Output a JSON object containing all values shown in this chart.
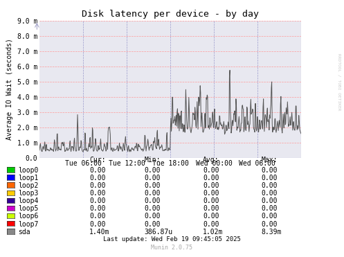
{
  "title": "Disk latency per device - by day",
  "ylabel": "Average IO Wait (seconds)",
  "right_label": "RRDTOOL / TOBI OETIKER",
  "background_color": "#ffffff",
  "plot_bg_color": "#e8e8f0",
  "grid_color_h": "#ff9999",
  "grid_color_v": "#9999cc",
  "ylim": [
    0.0,
    0.009
  ],
  "yticks": [
    0.0,
    0.001,
    0.002,
    0.003,
    0.004,
    0.005,
    0.006,
    0.007,
    0.008,
    0.009
  ],
  "ytick_labels": [
    "0.0",
    "1.0 m",
    "2.0 m",
    "3.0 m",
    "4.0 m",
    "5.0 m",
    "6.0 m",
    "7.0 m",
    "8.0 m",
    "9.0 m"
  ],
  "xtick_positions": [
    0.1667,
    0.3333,
    0.5,
    0.6667,
    0.8333
  ],
  "xtick_labels": [
    "Tue 06:00",
    "Tue 12:00",
    "Tue 18:00",
    "Wed 00:00",
    "Wed 06:00"
  ],
  "line_color": "#555555",
  "line_width": 0.7,
  "legend_entries": [
    {
      "label": "loop0",
      "color": "#00cc00"
    },
    {
      "label": "loop1",
      "color": "#0000ff"
    },
    {
      "label": "loop2",
      "color": "#ff6600"
    },
    {
      "label": "loop3",
      "color": "#ffcc00"
    },
    {
      "label": "loop4",
      "color": "#330099"
    },
    {
      "label": "loop5",
      "color": "#cc00cc"
    },
    {
      "label": "loop6",
      "color": "#ccff00"
    },
    {
      "label": "loop7",
      "color": "#ff0000"
    },
    {
      "label": "sda",
      "color": "#888888"
    }
  ],
  "stats_header": [
    "Cur:",
    "Min:",
    "Avg:",
    "Max:"
  ],
  "stats": [
    [
      "loop0",
      "0.00",
      "0.00",
      "0.00",
      "0.00"
    ],
    [
      "loop1",
      "0.00",
      "0.00",
      "0.00",
      "0.00"
    ],
    [
      "loop2",
      "0.00",
      "0.00",
      "0.00",
      "0.00"
    ],
    [
      "loop3",
      "0.00",
      "0.00",
      "0.00",
      "0.00"
    ],
    [
      "loop4",
      "0.00",
      "0.00",
      "0.00",
      "0.00"
    ],
    [
      "loop5",
      "0.00",
      "0.00",
      "0.00",
      "0.00"
    ],
    [
      "loop6",
      "0.00",
      "0.00",
      "0.00",
      "0.00"
    ],
    [
      "loop7",
      "0.00",
      "0.00",
      "0.00",
      "0.00"
    ],
    [
      "sda",
      "1.40m",
      "386.87u",
      "1.02m",
      "8.39m"
    ]
  ],
  "last_update": "Last update: Wed Feb 19 09:45:05 2025",
  "munin_version": "Munin 2.0.75",
  "arrow_color": "#aaaacc"
}
